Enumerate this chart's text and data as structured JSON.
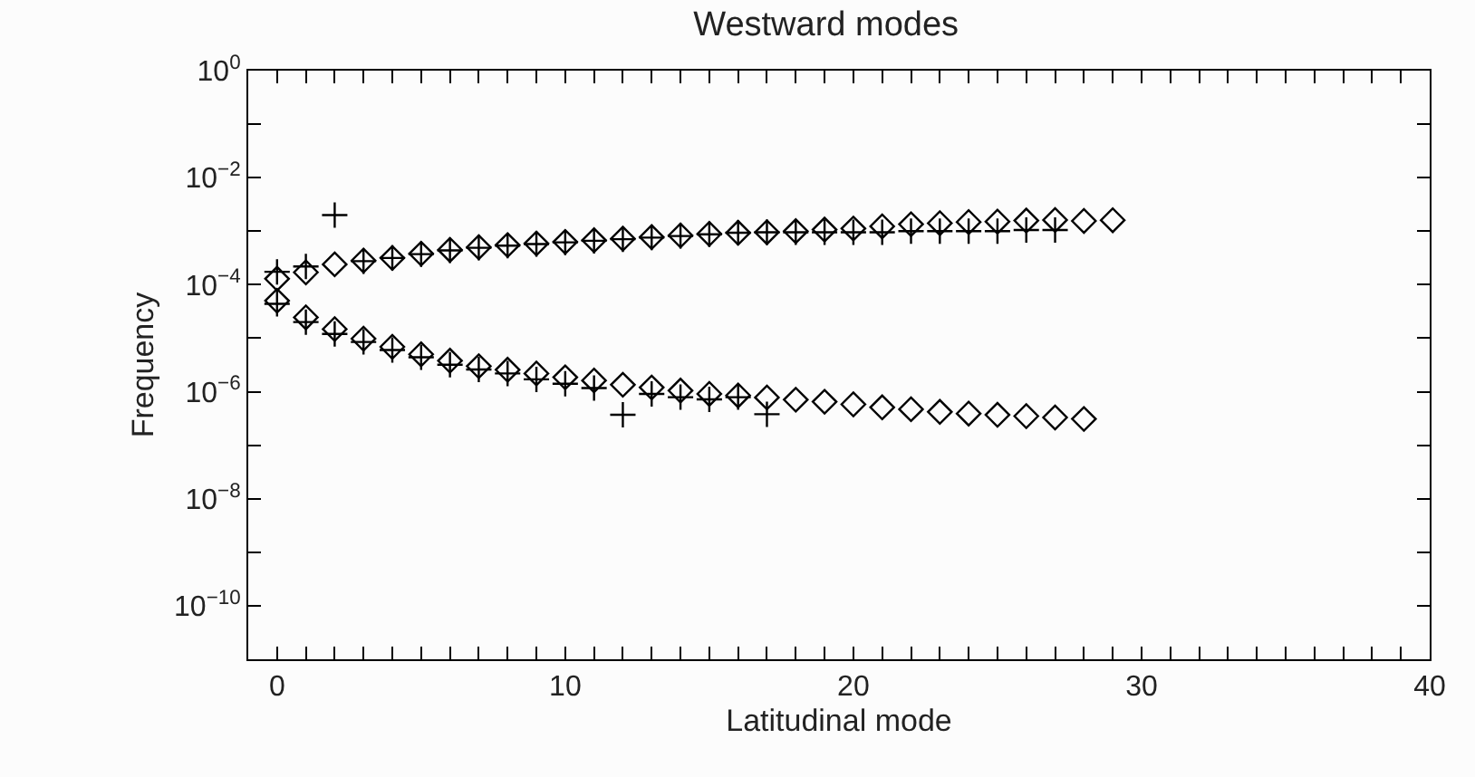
{
  "chart_data": {
    "type": "scatter",
    "title": "Westward modes",
    "xlabel": "Latitudinal mode",
    "ylabel": "Frequency",
    "log": "y",
    "xlim": [
      -1,
      40
    ],
    "xticks": [
      0,
      {
        "value": 1,
        "label": null
      },
      {
        "value": 2,
        "label": null
      },
      {
        "value": 3,
        "label": null
      },
      {
        "value": 4,
        "label": null
      },
      {
        "value": 5,
        "label": null
      },
      {
        "value": 6,
        "label": null
      },
      {
        "value": 7,
        "label": null
      },
      {
        "value": 8,
        "label": null
      },
      {
        "value": 9,
        "label": null
      },
      10,
      {
        "value": 11,
        "label": null
      },
      {
        "value": 12,
        "label": null
      },
      {
        "value": 13,
        "label": null
      },
      {
        "value": 14,
        "label": null
      },
      {
        "value": 15,
        "label": null
      },
      {
        "value": 16,
        "label": null
      },
      {
        "value": 17,
        "label": null
      },
      {
        "value": 18,
        "label": null
      },
      {
        "value": 19,
        "label": null
      },
      20,
      {
        "value": 21,
        "label": null
      },
      {
        "value": 22,
        "label": null
      },
      {
        "value": 23,
        "label": null
      },
      {
        "value": 24,
        "label": null
      },
      {
        "value": 25,
        "label": null
      },
      {
        "value": 26,
        "label": null
      },
      {
        "value": 27,
        "label": null
      },
      {
        "value": 28,
        "label": null
      },
      {
        "value": 29,
        "label": null
      },
      30,
      {
        "value": 31,
        "label": null
      },
      {
        "value": 32,
        "label": null
      },
      {
        "value": 33,
        "label": null
      },
      {
        "value": 34,
        "label": null
      },
      {
        "value": 35,
        "label": null
      },
      {
        "value": 36,
        "label": null
      },
      {
        "value": 37,
        "label": null
      },
      {
        "value": 38,
        "label": null
      },
      {
        "value": 39,
        "label": null
      },
      40
    ],
    "ylim": [
      1e-11,
      1
    ],
    "yticks": [
      {
        "value": 1e-10,
        "label": "10$^{−10}$"
      },
      {
        "value": 1e-09,
        "label": null
      },
      {
        "value": 1e-08,
        "label": "10$^{−8}$"
      },
      {
        "value": 1e-07,
        "label": null
      },
      {
        "value": 1e-06,
        "label": "10$^{−6}$"
      },
      {
        "value": 1e-05,
        "label": null
      },
      {
        "value": 0.0001,
        "label": "10$^{−4}$"
      },
      {
        "value": 0.001,
        "label": null
      },
      {
        "value": 0.01,
        "label": "10$^{−2}$"
      },
      {
        "value": 0.1,
        "label": null
      },
      {
        "value": 1,
        "label": "10$^{0}$"
      }
    ],
    "series": [
      {
        "color": "#000000",
        "marker": "diamond",
        "x": [
          0,
          1,
          2,
          3,
          4,
          5,
          6,
          7,
          8,
          9,
          10,
          11,
          12,
          13,
          14,
          15,
          16,
          17,
          18,
          19,
          20,
          21,
          22,
          23,
          24,
          25,
          26,
          27,
          28,
          29
        ],
        "values": [
          0.000129,
          0.00017,
          0.00024,
          0.000282,
          0.000316,
          0.00038,
          0.000447,
          0.000501,
          0.00055,
          0.000589,
          0.000631,
          0.000676,
          0.000724,
          0.000776,
          0.000832,
          0.000891,
          0.000933,
          0.000955,
          0.001,
          0.00107,
          0.00112,
          0.00123,
          0.00135,
          0.00141,
          0.00148,
          0.00151,
          0.00158,
          0.00162,
          0.00155,
          0.0016
        ]
      },
      {
        "color": "#000000",
        "marker": "cross",
        "x": [
          0,
          1,
          2,
          3,
          4,
          5,
          6,
          7,
          8,
          9,
          10,
          11,
          12,
          13,
          14,
          15,
          16,
          17,
          18,
          19,
          20,
          21,
          22,
          23,
          24,
          25,
          26,
          27
        ],
        "values": [
          0.000174,
          0.000219,
          0.002,
          0.000275,
          0.000316,
          0.000372,
          0.000437,
          0.00049,
          0.000537,
          0.000575,
          0.000617,
          0.000661,
          0.000708,
          0.000759,
          0.000813,
          0.000871,
          0.000933,
          0.000955,
          0.000955,
          0.000955,
          0.000955,
          0.000955,
          0.001,
          0.001,
          0.001,
          0.001,
          0.00105,
          0.00105
        ]
      },
      {
        "color": "#000000",
        "marker": "diamond",
        "x": [
          0,
          1,
          2,
          3,
          4,
          5,
          6,
          7,
          8,
          9,
          10,
          11,
          12,
          13,
          14,
          15,
          16,
          17,
          18,
          19,
          20,
          21,
          22,
          23,
          24,
          25,
          26,
          27,
          28
        ],
        "values": [
          5.01e-05,
          2.45e-05,
          1.48e-05,
          9.8e-06,
          6.9e-06,
          5e-06,
          3.8e-06,
          3e-06,
          2.57e-06,
          2.19e-06,
          1.86e-06,
          1.62e-06,
          1.35e-06,
          1.2e-06,
          1.05e-06,
          9.1e-07,
          8.5e-07,
          7.8e-07,
          7.1e-07,
          6.5e-07,
          5.8e-07,
          5.1e-07,
          4.7e-07,
          4.2e-07,
          3.9e-07,
          3.7e-07,
          3.5e-07,
          3.3e-07,
          3.1e-07
        ]
      },
      {
        "color": "#000000",
        "marker": "cross",
        "x": [
          0,
          1,
          2,
          3,
          4,
          5,
          6,
          7,
          8,
          9,
          10,
          11,
          12,
          13,
          14,
          15,
          16,
          17
        ],
        "values": [
          4.4e-05,
          2e-05,
          1.2e-05,
          8.5e-06,
          6e-06,
          4.4e-06,
          3.2e-06,
          2.6e-06,
          2.19e-06,
          1.7e-06,
          1.41e-06,
          1.17e-06,
          3.7e-07,
          9.1e-07,
          7.9e-07,
          7.2e-07,
          7.9e-07,
          3.8e-07
        ]
      }
    ]
  }
}
